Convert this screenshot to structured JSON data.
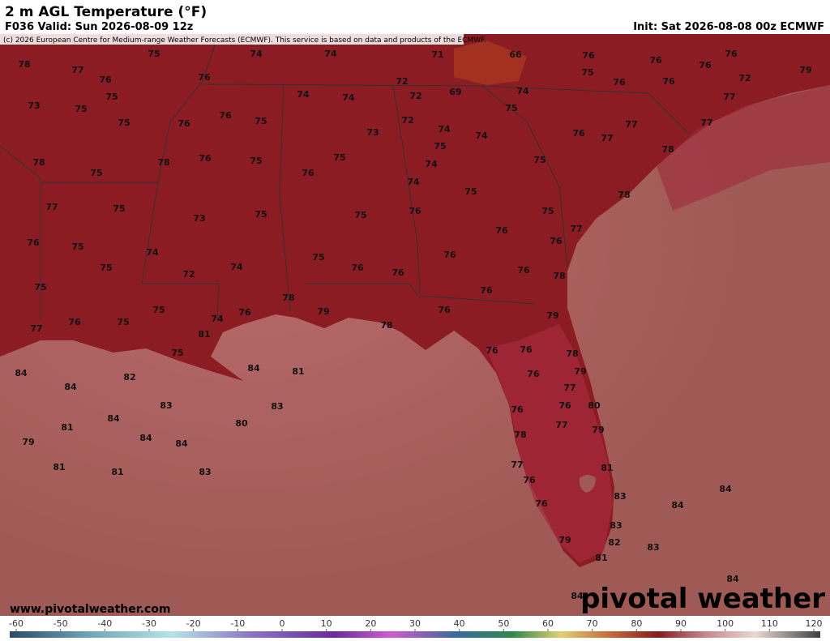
{
  "header": {
    "title": "2 m AGL Temperature (°F)",
    "valid": "F036 Valid: Sun 2026-08-09 12z",
    "init": "Init: Sat 2026-08-08 00z ECMWF",
    "copyright": "(c) 2026 European Centre for Medium-range Weather Forecasts (ECMWF). This service is based on data and products of the ECMWF."
  },
  "footer": {
    "website": "www.pivotalweather.com",
    "logo": "pivotal weather"
  },
  "colorbar": {
    "ticks": [
      -60,
      -50,
      -40,
      -30,
      -20,
      -10,
      0,
      10,
      20,
      30,
      40,
      50,
      60,
      70,
      80,
      90,
      100,
      110,
      120
    ]
  },
  "map": {
    "labels": [
      78,
      77,
      75,
      76,
      74,
      74,
      71,
      66,
      76,
      76,
      76,
      76,
      79,
      75,
      76,
      76,
      72,
      77,
      73,
      75,
      75,
      76,
      75,
      76,
      76,
      75,
      74,
      74,
      72,
      72,
      69,
      74,
      75,
      72,
      74,
      73,
      75,
      74,
      76,
      77,
      77,
      77,
      78,
      75,
      78,
      76,
      75,
      75,
      76,
      74,
      75,
      78,
      74,
      75,
      78,
      77,
      75,
      73,
      75,
      75,
      76,
      75,
      76,
      77,
      76,
      75,
      74,
      76,
      75,
      72,
      74,
      75,
      76,
      76,
      76,
      76,
      78,
      75,
      76,
      75,
      74,
      76,
      78,
      79,
      76,
      79,
      77,
      76,
      75,
      81,
      78,
      75,
      76,
      76,
      78,
      79,
      76,
      84,
      84,
      81,
      82,
      84,
      77,
      83,
      83,
      76,
      80,
      76,
      84,
      81,
      80,
      77,
      79,
      84,
      78,
      79,
      84,
      81,
      81,
      83,
      77,
      81,
      76,
      83,
      84,
      84,
      76,
      83,
      82,
      79,
      83,
      81,
      84,
      84
    ]
  }
}
